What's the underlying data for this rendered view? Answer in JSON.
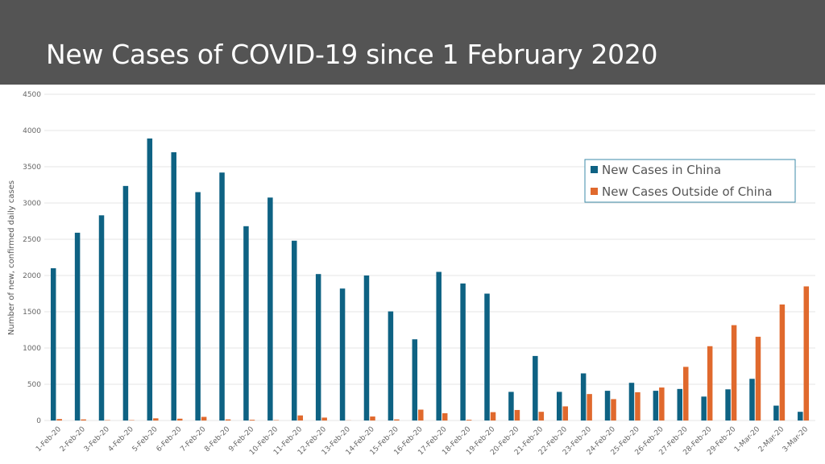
{
  "header": {
    "title": "New Cases of COVID-19 since 1 February 2020"
  },
  "colors": {
    "header_bg": "#545454",
    "china": "#0e6283",
    "outside": "#e0692d",
    "grid": "#e4e4e4",
    "legend_border": "#3e8ba8"
  },
  "chart_data": {
    "type": "bar",
    "ylabel": "Number of new, confirmed daily cases",
    "xlabel": "",
    "ylim": [
      0,
      4500
    ],
    "yticks": [
      0,
      500,
      1000,
      1500,
      2000,
      2500,
      3000,
      3500,
      4000,
      4500
    ],
    "grid": true,
    "legend_position": "top-right",
    "categories": [
      "1-Feb-20",
      "2-Feb-20",
      "3-Feb-20",
      "4-Feb-20",
      "5-Feb-20",
      "6-Feb-20",
      "7-Feb-20",
      "8-Feb-20",
      "9-Feb-20",
      "10-Feb-20",
      "11-Feb-20",
      "12-Feb-20",
      "13-Feb-20",
      "14-Feb-20",
      "15-Feb-20",
      "16-Feb-20",
      "17-Feb-20",
      "18-Feb-20",
      "19-Feb-20",
      "20-Feb-20",
      "21-Feb-20",
      "22-Feb-20",
      "23-Feb-20",
      "24-Feb-20",
      "25-Feb-20",
      "26-Feb-20",
      "27-Feb-20",
      "28-Feb-20",
      "29-Feb-20",
      "1-Mar-20",
      "2-Mar-20",
      "3-Mar-20"
    ],
    "series": [
      {
        "name": "New Cases in China",
        "color": "#0e6283",
        "values": [
          2100,
          2590,
          2830,
          3235,
          3890,
          3700,
          3150,
          3420,
          2680,
          3075,
          2480,
          2020,
          1820,
          2000,
          1505,
          1120,
          2050,
          1890,
          1750,
          395,
          890,
          395,
          650,
          410,
          520,
          410,
          435,
          330,
          430,
          575,
          205,
          120
        ]
      },
      {
        "name": "New Cases Outside of China",
        "color": "#e0692d",
        "values": [
          20,
          15,
          5,
          5,
          30,
          25,
          50,
          15,
          10,
          5,
          70,
          40,
          2,
          55,
          15,
          150,
          100,
          10,
          115,
          145,
          120,
          195,
          365,
          295,
          390,
          455,
          740,
          1025,
          1315,
          1155,
          1600,
          1850
        ]
      }
    ]
  }
}
